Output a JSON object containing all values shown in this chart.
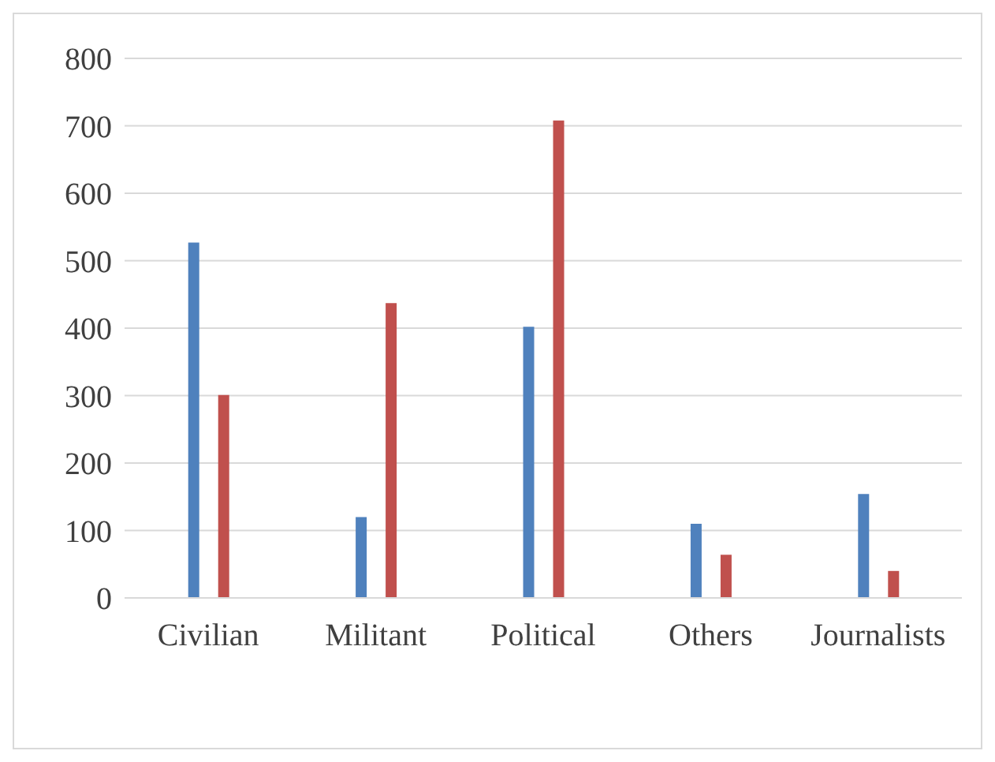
{
  "chart_data": {
    "type": "bar",
    "categories": [
      "Civilian",
      "Militant",
      "Political",
      "Others",
      "Journalists"
    ],
    "series": [
      {
        "color": "#4f81bd",
        "values": [
          527,
          120,
          402,
          110,
          154
        ]
      },
      {
        "color": "#c0504d",
        "values": [
          301,
          437,
          708,
          64,
          40
        ]
      }
    ],
    "ylim": [
      0,
      800
    ],
    "yticks": [
      0,
      100,
      200,
      300,
      400,
      500,
      600,
      700,
      800
    ],
    "grid": "y"
  }
}
